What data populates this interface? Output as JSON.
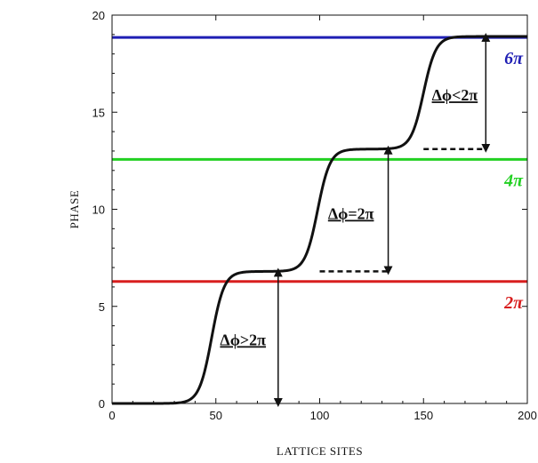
{
  "chart_data": {
    "type": "line",
    "title": "",
    "xlabel": "LATTICE SITES",
    "ylabel": "PHASE",
    "xlim": [
      0,
      200
    ],
    "ylim": [
      0,
      20
    ],
    "xticks": [
      0,
      50,
      100,
      150,
      200
    ],
    "yticks": [
      0,
      5,
      10,
      15,
      20
    ],
    "grid": false,
    "levels": [
      {
        "value": 18.85,
        "label": "6π",
        "color": "#1f1fb4"
      },
      {
        "value": 12.57,
        "label": "4π",
        "color": "#22d022"
      },
      {
        "value": 6.28,
        "label": "2π",
        "color": "#d81e1e"
      }
    ],
    "series": [
      {
        "color": "#111111",
        "steps": [
          {
            "center": 48,
            "from": 0.0,
            "to": 6.8,
            "width": 3.0
          },
          {
            "center": 99,
            "from": 6.8,
            "to": 13.1,
            "width": 3.0
          },
          {
            "center": 150,
            "from": 13.1,
            "to": 18.9,
            "width": 3.0
          }
        ]
      }
    ],
    "annotations": [
      {
        "text": "Δϕ>2π",
        "x": 80,
        "y_from": 0.0,
        "y_to": 6.8,
        "dash_from_x": null,
        "text_x": 52,
        "text_y": 3.0
      },
      {
        "text": "Δϕ=2π",
        "x": 133,
        "y_from": 6.8,
        "y_to": 13.1,
        "dash_from_x": 100,
        "text_x": 104,
        "text_y": 9.5
      },
      {
        "text": "Δϕ<2π",
        "x": 180,
        "y_from": 13.1,
        "y_to": 18.9,
        "dash_from_x": 150,
        "text_x": 154,
        "text_y": 15.6
      }
    ]
  }
}
